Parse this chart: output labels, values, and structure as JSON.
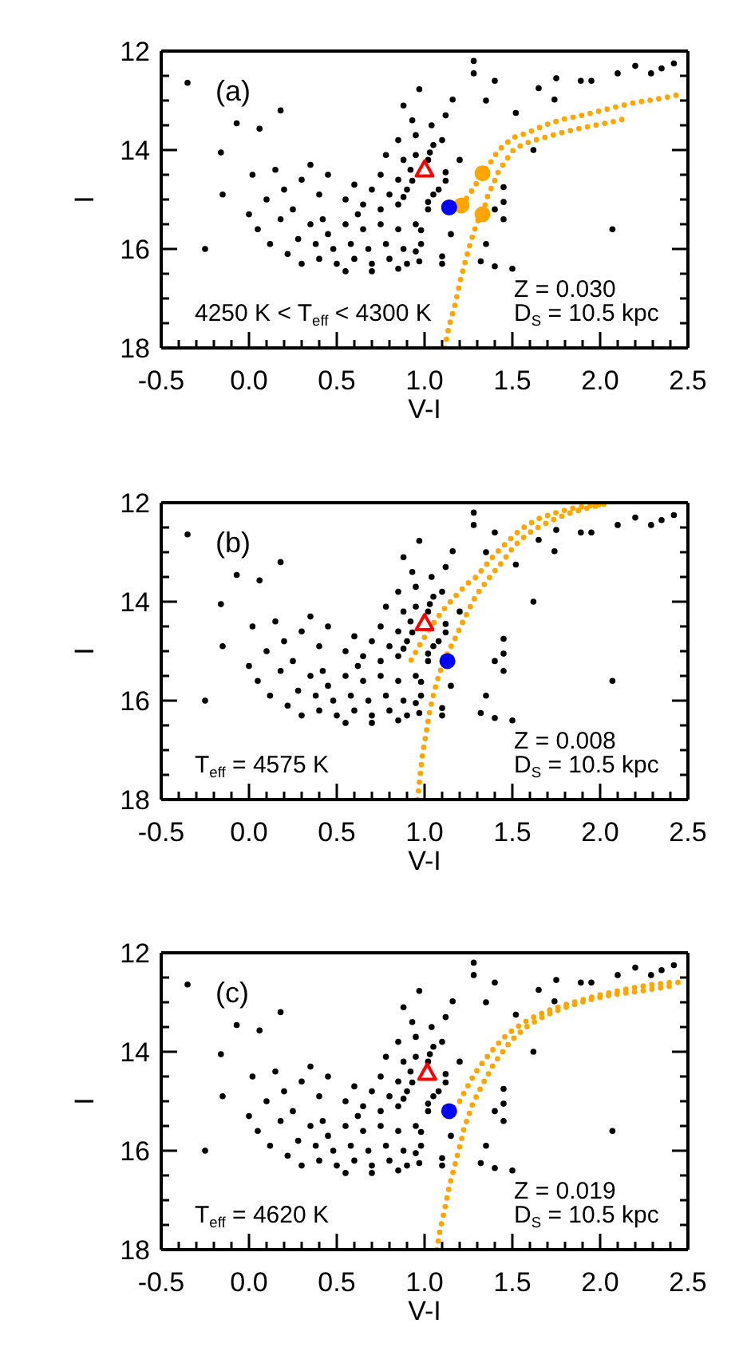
{
  "chart_data": [
    {
      "type": "scatter",
      "xlabel": "V-I",
      "ylabel": "I",
      "xlim": [
        -0.5,
        2.5
      ],
      "ylim": [
        18,
        12
      ],
      "xticks": [
        -0.5,
        {
          "value": -0.4,
          "label": null
        },
        {
          "value": -0.3,
          "label": null
        },
        {
          "value": -0.2,
          "label": null
        },
        {
          "value": -0.1,
          "label": null
        },
        {
          "value": 0,
          "label": "0.0"
        },
        {
          "value": 0.1,
          "label": null
        },
        {
          "value": 0.2,
          "label": null
        },
        {
          "value": 0.3,
          "label": null
        },
        {
          "value": 0.4,
          "label": null
        },
        0.5,
        {
          "value": 0.6,
          "label": null
        },
        {
          "value": 0.7,
          "label": null
        },
        {
          "value": 0.8,
          "label": null
        },
        {
          "value": 0.9,
          "label": null
        },
        {
          "value": 1,
          "label": "1.0"
        },
        {
          "value": 1.1,
          "label": null
        },
        {
          "value": 1.2,
          "label": null
        },
        {
          "value": 1.3,
          "label": null
        },
        {
          "value": 1.4,
          "label": null
        },
        1.5,
        {
          "value": 1.6,
          "label": null
        },
        {
          "value": 1.7,
          "label": null
        },
        {
          "value": 1.8,
          "label": null
        },
        {
          "value": 1.9,
          "label": null
        },
        {
          "value": 2,
          "label": "2.0"
        },
        {
          "value": 2.1,
          "label": null
        },
        {
          "value": 2.2,
          "label": null
        },
        {
          "value": 2.3,
          "label": null
        },
        {
          "value": 2.4,
          "label": null
        },
        2.5
      ],
      "yticks": [
        12,
        {
          "value": 12.5,
          "label": null
        },
        {
          "value": 13,
          "label": null
        },
        {
          "value": 13.5,
          "label": null
        },
        14,
        {
          "value": 14.5,
          "label": null
        },
        {
          "value": 15,
          "label": null
        },
        {
          "value": 15.5,
          "label": null
        },
        16,
        {
          "value": 16.5,
          "label": null
        },
        {
          "value": 17,
          "label": null
        },
        {
          "value": 17.5,
          "label": null
        },
        18
      ],
      "annotations": [
        "(a)",
        "4250 K < T$_{eff}$ < 4300 K",
        "Z = 0.030",
        "D$_{S}$ = 10.5 kpc"
      ],
      "series": [
        {
          "type": "scatter",
          "marker": "circle",
          "color": "#000000",
          "x": [
            -0.35,
            -0.07,
            0.18,
            0.06,
            -0.16,
            0.97,
            1.16,
            1.28,
            1.28,
            1.4,
            1.65,
            1.52,
            1.89,
            1.95,
            2.1,
            2.29,
            2.35,
            1.74,
            0.88,
            1.04,
            1.62,
            2.07,
            1.12,
            0.93,
            1.35,
            2.2,
            1.75,
            2.42,
            -0.15,
            -0.25,
            0.02,
            0.1,
            0.15,
            0.2,
            0.25,
            0.3,
            0.05,
            0.12,
            0.18,
            0.35,
            0.4,
            0.42,
            0.28,
            0.0,
            0.22,
            0.45,
            0.85,
            0.95,
            1.05,
            1.1,
            0.78,
            0.88,
            0.95,
            1.02,
            1.03,
            1.2,
            0.75,
            0.85,
            0.92,
            1.12,
            1.12,
            1.45,
            0.7,
            0.8,
            0.9,
            0.93,
            1.05,
            1.08,
            0.65,
            0.75,
            0.85,
            0.88,
            1.02,
            1.02,
            1.4,
            0.6,
            0.55,
            1.45,
            1.45,
            0.35,
            0.45,
            0.55,
            0.65,
            0.75,
            0.85,
            0.95,
            0.98,
            1.15,
            0.38,
            0.48,
            0.58,
            0.68,
            0.78,
            0.88,
            0.98,
            0.95,
            1.1,
            0.4,
            0.5,
            0.6,
            0.7,
            0.8,
            0.9,
            0.97,
            1.1,
            0.55,
            0.7,
            0.85,
            1.32,
            1.35,
            1.4,
            0.3,
            1.5,
            0.62
          ],
          "values": [
            12.64,
            13.46,
            13.2,
            13.57,
            14.05,
            12.77,
            12.98,
            12.45,
            12.2,
            12.6,
            12.75,
            13.25,
            12.6,
            12.6,
            12.45,
            12.45,
            12.35,
            12.98,
            13.1,
            13.5,
            14.0,
            15.6,
            13.3,
            13.4,
            13.0,
            12.3,
            12.55,
            12.25,
            14.9,
            16.0,
            14.5,
            15.0,
            14.4,
            14.8,
            15.2,
            14.6,
            15.6,
            15.9,
            15.4,
            14.3,
            14.9,
            15.4,
            15.8,
            15.3,
            16.1,
            14.5,
            13.8,
            13.7,
            13.9,
            13.8,
            14.1,
            14.2,
            14.1,
            14.2,
            14.05,
            14.2,
            14.5,
            14.6,
            14.4,
            14.45,
            14.62,
            14.75,
            14.8,
            14.9,
            14.8,
            14.62,
            14.9,
            14.8,
            15.1,
            15.2,
            15.1,
            14.95,
            15.2,
            15.05,
            15.2,
            14.7,
            15.0,
            15.05,
            15.4,
            15.5,
            15.7,
            15.5,
            15.6,
            15.5,
            15.6,
            15.5,
            15.62,
            15.7,
            15.9,
            16.0,
            15.9,
            16.0,
            15.9,
            16.0,
            15.9,
            16.05,
            16.15,
            16.2,
            16.3,
            16.2,
            16.3,
            16.2,
            16.3,
            16.25,
            16.3,
            16.45,
            16.45,
            16.4,
            16.25,
            15.9,
            16.35,
            16.3,
            16.4,
            15.3
          ]
        },
        {
          "type": "line",
          "line_style": "dotted",
          "color": "#ffa500",
          "x": [
            1.115,
            1.14,
            1.17,
            1.21,
            1.26,
            1.3,
            1.33,
            1.36,
            1.39,
            1.42,
            1.47,
            1.51,
            1.57,
            1.64,
            1.72,
            1.8,
            1.9,
            2.0,
            2.08,
            2.15
          ],
          "values": [
            18.0,
            17.55,
            17.18,
            16.54,
            15.89,
            15.45,
            15.3,
            14.92,
            14.7,
            14.44,
            14.17,
            13.98,
            13.87,
            13.79,
            13.71,
            13.63,
            13.55,
            13.48,
            13.42,
            13.36
          ]
        },
        {
          "type": "line",
          "line_style": "dotted",
          "color": "#ffa500",
          "x": [
            1.21,
            1.27,
            1.33,
            1.38,
            1.42,
            1.47,
            1.51,
            1.58,
            1.65,
            1.72,
            1.8,
            1.92,
            2.01,
            2.1,
            2.2,
            2.29,
            2.37,
            2.45
          ],
          "values": [
            15.12,
            14.82,
            14.47,
            14.23,
            14.01,
            13.85,
            13.74,
            13.66,
            13.55,
            13.45,
            13.37,
            13.28,
            13.2,
            13.12,
            13.04,
            12.99,
            12.94,
            12.88
          ]
        },
        {
          "type": "scatter",
          "marker": "circle",
          "color": "#ffa500",
          "x": [
            1.33,
            1.33,
            1.21
          ],
          "values": [
            14.47,
            15.3,
            15.12
          ]
        },
        {
          "type": "scatter",
          "marker": "triangle",
          "color": "#ff0000",
          "x": [
            1.0
          ],
          "values": [
            14.39
          ]
        },
        {
          "type": "scatter",
          "marker": "circle",
          "color": "#0000ff",
          "x": [
            1.14
          ],
          "values": [
            15.16
          ]
        }
      ]
    },
    {
      "type": "scatter",
      "xlabel": "V-I",
      "ylabel": "I",
      "xlim": [
        -0.5,
        2.5
      ],
      "ylim": [
        18,
        12
      ],
      "xticks": [
        -0.5,
        {
          "value": -0.4,
          "label": null
        },
        {
          "value": -0.3,
          "label": null
        },
        {
          "value": -0.2,
          "label": null
        },
        {
          "value": -0.1,
          "label": null
        },
        {
          "value": 0,
          "label": "0.0"
        },
        {
          "value": 0.1,
          "label": null
        },
        {
          "value": 0.2,
          "label": null
        },
        {
          "value": 0.3,
          "label": null
        },
        {
          "value": 0.4,
          "label": null
        },
        0.5,
        {
          "value": 0.6,
          "label": null
        },
        {
          "value": 0.7,
          "label": null
        },
        {
          "value": 0.8,
          "label": null
        },
        {
          "value": 0.9,
          "label": null
        },
        {
          "value": 1,
          "label": "1.0"
        },
        {
          "value": 1.1,
          "label": null
        },
        {
          "value": 1.2,
          "label": null
        },
        {
          "value": 1.3,
          "label": null
        },
        {
          "value": 1.4,
          "label": null
        },
        1.5,
        {
          "value": 1.6,
          "label": null
        },
        {
          "value": 1.7,
          "label": null
        },
        {
          "value": 1.8,
          "label": null
        },
        {
          "value": 1.9,
          "label": null
        },
        {
          "value": 2,
          "label": "2.0"
        },
        {
          "value": 2.1,
          "label": null
        },
        {
          "value": 2.2,
          "label": null
        },
        {
          "value": 2.3,
          "label": null
        },
        {
          "value": 2.4,
          "label": null
        },
        2.5
      ],
      "yticks": [
        12,
        {
          "value": 12.5,
          "label": null
        },
        {
          "value": 13,
          "label": null
        },
        {
          "value": 13.5,
          "label": null
        },
        14,
        {
          "value": 14.5,
          "label": null
        },
        {
          "value": 15,
          "label": null
        },
        {
          "value": 15.5,
          "label": null
        },
        16,
        {
          "value": 16.5,
          "label": null
        },
        {
          "value": 17,
          "label": null
        },
        {
          "value": 17.5,
          "label": null
        },
        18
      ],
      "annotations": [
        "(b)",
        "T$_{eff}$ = 4575 K",
        "Z = 0.008",
        "D$_{S}$ = 10.5 kpc"
      ],
      "series": [
        {
          "type": "scatter",
          "marker": "circle",
          "color": "#000000",
          "x": [
            -0.35,
            -0.07,
            0.18,
            0.06,
            -0.16,
            0.97,
            1.16,
            1.28,
            1.28,
            1.4,
            1.65,
            1.52,
            1.89,
            1.95,
            2.1,
            2.29,
            2.35,
            1.74,
            0.88,
            1.04,
            1.62,
            2.07,
            1.12,
            0.93,
            1.35,
            2.2,
            1.75,
            2.42,
            -0.15,
            -0.25,
            0.02,
            0.1,
            0.15,
            0.2,
            0.25,
            0.3,
            0.05,
            0.12,
            0.18,
            0.35,
            0.4,
            0.42,
            0.28,
            0.0,
            0.22,
            0.45,
            0.85,
            0.95,
            1.05,
            1.1,
            0.78,
            0.88,
            0.95,
            1.02,
            1.03,
            1.2,
            0.75,
            0.85,
            0.92,
            1.12,
            1.12,
            1.45,
            0.7,
            0.8,
            0.9,
            0.93,
            1.05,
            1.08,
            0.65,
            0.75,
            0.85,
            0.88,
            1.02,
            1.02,
            1.4,
            0.6,
            0.55,
            1.45,
            1.45,
            0.35,
            0.45,
            0.55,
            0.65,
            0.75,
            0.85,
            0.95,
            0.98,
            1.15,
            0.38,
            0.48,
            0.58,
            0.68,
            0.78,
            0.88,
            0.98,
            0.95,
            1.1,
            0.4,
            0.5,
            0.6,
            0.7,
            0.8,
            0.9,
            0.97,
            1.1,
            0.55,
            0.7,
            0.85,
            1.32,
            1.35,
            1.4,
            0.3,
            1.5,
            0.62
          ],
          "values": [
            12.64,
            13.46,
            13.2,
            13.57,
            14.05,
            12.77,
            12.98,
            12.45,
            12.2,
            12.6,
            12.75,
            13.25,
            12.6,
            12.6,
            12.45,
            12.45,
            12.35,
            12.98,
            13.1,
            13.5,
            14.0,
            15.6,
            13.3,
            13.4,
            13.0,
            12.3,
            12.55,
            12.25,
            14.9,
            16.0,
            14.5,
            15.0,
            14.4,
            14.8,
            15.2,
            14.6,
            15.6,
            15.9,
            15.4,
            14.3,
            14.9,
            15.4,
            15.8,
            15.3,
            16.1,
            14.5,
            13.8,
            13.7,
            13.9,
            13.8,
            14.1,
            14.2,
            14.1,
            14.2,
            14.05,
            14.2,
            14.5,
            14.6,
            14.4,
            14.45,
            14.62,
            14.75,
            14.8,
            14.9,
            14.8,
            14.62,
            14.9,
            14.8,
            15.1,
            15.2,
            15.1,
            14.95,
            15.2,
            15.05,
            15.2,
            14.7,
            15.0,
            15.05,
            15.4,
            15.5,
            15.7,
            15.5,
            15.6,
            15.5,
            15.6,
            15.5,
            15.62,
            15.7,
            15.9,
            16.0,
            15.9,
            16.0,
            15.9,
            16.0,
            15.9,
            16.05,
            16.15,
            16.2,
            16.3,
            16.2,
            16.3,
            16.2,
            16.3,
            16.25,
            16.3,
            16.45,
            16.45,
            16.4,
            16.25,
            15.9,
            16.35,
            16.3,
            16.4,
            15.3
          ]
        },
        {
          "type": "line",
          "line_style": "dotted",
          "color": "#ffa500",
          "x": [
            0.96,
            0.975,
            0.99,
            1.01,
            1.03,
            1.055,
            1.08,
            1.11,
            1.15,
            1.18,
            1.21,
            1.24,
            1.27,
            1.3,
            1.34,
            1.38,
            1.42,
            1.45,
            1.49,
            1.54,
            1.6,
            1.67,
            1.76,
            1.85,
            1.94,
            2.03
          ],
          "values": [
            18.0,
            17.5,
            17.05,
            16.63,
            16.2,
            15.82,
            15.5,
            15.2,
            14.91,
            14.7,
            14.46,
            14.25,
            14.03,
            13.84,
            13.65,
            13.46,
            13.3,
            13.16,
            12.97,
            12.77,
            12.6,
            12.45,
            12.3,
            12.18,
            12.1,
            12.02
          ]
        },
        {
          "type": "line",
          "line_style": "dotted",
          "color": "#ffa500",
          "x": [
            0.924,
            0.97,
            1.018,
            1.067,
            1.127,
            1.188,
            1.25,
            1.294,
            1.34,
            1.394,
            1.455,
            1.515,
            1.576,
            1.65,
            1.74,
            1.83,
            1.92,
            2.03
          ],
          "values": [
            15.18,
            14.89,
            14.61,
            14.35,
            14.08,
            13.84,
            13.62,
            13.5,
            13.3,
            13.07,
            12.85,
            12.64,
            12.47,
            12.32,
            12.21,
            12.12,
            12.07,
            12.02
          ]
        },
        {
          "type": "scatter",
          "marker": "triangle",
          "color": "#ff0000",
          "x": [
            1.0
          ],
          "values": [
            14.43
          ]
        },
        {
          "type": "scatter",
          "marker": "circle",
          "color": "#0000ff",
          "x": [
            1.13
          ],
          "values": [
            15.2
          ]
        }
      ]
    },
    {
      "type": "scatter",
      "xlabel": "V-I",
      "ylabel": "I",
      "xlim": [
        -0.5,
        2.5
      ],
      "ylim": [
        18,
        12
      ],
      "xticks": [
        -0.5,
        {
          "value": -0.4,
          "label": null
        },
        {
          "value": -0.3,
          "label": null
        },
        {
          "value": -0.2,
          "label": null
        },
        {
          "value": -0.1,
          "label": null
        },
        {
          "value": 0,
          "label": "0.0"
        },
        {
          "value": 0.1,
          "label": null
        },
        {
          "value": 0.2,
          "label": null
        },
        {
          "value": 0.3,
          "label": null
        },
        {
          "value": 0.4,
          "label": null
        },
        0.5,
        {
          "value": 0.6,
          "label": null
        },
        {
          "value": 0.7,
          "label": null
        },
        {
          "value": 0.8,
          "label": null
        },
        {
          "value": 0.9,
          "label": null
        },
        {
          "value": 1,
          "label": "1.0"
        },
        {
          "value": 1.1,
          "label": null
        },
        {
          "value": 1.2,
          "label": null
        },
        {
          "value": 1.3,
          "label": null
        },
        {
          "value": 1.4,
          "label": null
        },
        1.5,
        {
          "value": 1.6,
          "label": null
        },
        {
          "value": 1.7,
          "label": null
        },
        {
          "value": 1.8,
          "label": null
        },
        {
          "value": 1.9,
          "label": null
        },
        {
          "value": 2,
          "label": "2.0"
        },
        {
          "value": 2.1,
          "label": null
        },
        {
          "value": 2.2,
          "label": null
        },
        {
          "value": 2.3,
          "label": null
        },
        {
          "value": 2.4,
          "label": null
        },
        2.5
      ],
      "yticks": [
        12,
        {
          "value": 12.5,
          "label": null
        },
        {
          "value": 13,
          "label": null
        },
        {
          "value": 13.5,
          "label": null
        },
        14,
        {
          "value": 14.5,
          "label": null
        },
        {
          "value": 15,
          "label": null
        },
        {
          "value": 15.5,
          "label": null
        },
        16,
        {
          "value": 16.5,
          "label": null
        },
        {
          "value": 17,
          "label": null
        },
        {
          "value": 17.5,
          "label": null
        },
        18
      ],
      "annotations": [
        "(c)",
        "T$_{eff}$ = 4620 K",
        "Z = 0.019",
        "D$_{S}$ = 10.5 kpc"
      ],
      "series": [
        {
          "type": "scatter",
          "marker": "circle",
          "color": "#000000",
          "x": [
            -0.35,
            -0.07,
            0.18,
            0.06,
            -0.16,
            0.97,
            1.16,
            1.28,
            1.28,
            1.4,
            1.65,
            1.52,
            1.89,
            1.95,
            2.1,
            2.29,
            2.35,
            1.74,
            0.88,
            1.04,
            1.62,
            2.07,
            1.12,
            0.93,
            1.35,
            2.2,
            1.75,
            2.42,
            -0.15,
            -0.25,
            0.02,
            0.1,
            0.15,
            0.2,
            0.25,
            0.3,
            0.05,
            0.12,
            0.18,
            0.35,
            0.4,
            0.42,
            0.28,
            0.0,
            0.22,
            0.45,
            0.85,
            0.95,
            1.05,
            1.1,
            0.78,
            0.88,
            0.95,
            1.02,
            1.03,
            1.2,
            0.75,
            0.85,
            0.92,
            1.12,
            1.12,
            1.45,
            0.7,
            0.8,
            0.9,
            0.93,
            1.05,
            1.08,
            0.65,
            0.75,
            0.85,
            0.88,
            1.02,
            1.02,
            1.4,
            0.6,
            0.55,
            1.45,
            1.45,
            0.35,
            0.45,
            0.55,
            0.65,
            0.75,
            0.85,
            0.95,
            0.98,
            1.15,
            0.38,
            0.48,
            0.58,
            0.68,
            0.78,
            0.88,
            0.98,
            0.95,
            1.1,
            0.4,
            0.5,
            0.6,
            0.7,
            0.8,
            0.9,
            0.97,
            1.1,
            0.55,
            0.7,
            0.85,
            1.32,
            1.35,
            1.4,
            0.3,
            1.5,
            0.62
          ],
          "values": [
            12.64,
            13.46,
            13.2,
            13.57,
            14.05,
            12.77,
            12.98,
            12.45,
            12.2,
            12.6,
            12.75,
            13.25,
            12.6,
            12.6,
            12.45,
            12.45,
            12.35,
            12.98,
            13.1,
            13.5,
            14.0,
            15.6,
            13.3,
            13.4,
            13.0,
            12.3,
            12.55,
            12.25,
            14.9,
            16.0,
            14.5,
            15.0,
            14.4,
            14.8,
            15.2,
            14.6,
            15.6,
            15.9,
            15.4,
            14.3,
            14.9,
            15.4,
            15.8,
            15.3,
            16.1,
            14.5,
            13.8,
            13.7,
            13.9,
            13.8,
            14.1,
            14.2,
            14.1,
            14.2,
            14.05,
            14.2,
            14.5,
            14.6,
            14.4,
            14.45,
            14.62,
            14.75,
            14.8,
            14.9,
            14.8,
            14.62,
            14.9,
            14.8,
            15.1,
            15.2,
            15.1,
            14.95,
            15.2,
            15.05,
            15.2,
            14.7,
            15.0,
            15.05,
            15.4,
            15.5,
            15.7,
            15.5,
            15.6,
            15.5,
            15.6,
            15.5,
            15.62,
            15.7,
            15.9,
            16.0,
            15.9,
            16.0,
            15.9,
            16.0,
            15.9,
            16.05,
            16.15,
            16.2,
            16.3,
            16.2,
            16.3,
            16.2,
            16.3,
            16.25,
            16.3,
            16.45,
            16.45,
            16.4,
            16.25,
            15.9,
            16.35,
            16.3,
            16.4,
            15.3
          ]
        },
        {
          "type": "line",
          "line_style": "dotted",
          "color": "#ffa500",
          "x": [
            1.07,
            1.085,
            1.105,
            1.124,
            1.14,
            1.167,
            1.19,
            1.21,
            1.227,
            1.25,
            1.27,
            1.3,
            1.33,
            1.36,
            1.39,
            1.43,
            1.47,
            1.52,
            1.58,
            1.65,
            1.73,
            1.82,
            1.92,
            2.02,
            2.12,
            2.22,
            2.32,
            2.42
          ],
          "values": [
            18.0,
            17.66,
            17.34,
            17.02,
            16.72,
            16.37,
            16.05,
            15.78,
            15.52,
            15.3,
            15.09,
            14.87,
            14.66,
            14.47,
            14.27,
            14.07,
            13.88,
            13.68,
            13.5,
            13.34,
            13.2,
            13.08,
            12.97,
            12.88,
            12.82,
            12.78,
            12.72,
            12.66
          ]
        },
        {
          "type": "line",
          "line_style": "dotted",
          "color": "#ffa500",
          "x": [
            1.2,
            1.23,
            1.26,
            1.29,
            1.33,
            1.37,
            1.41,
            1.45,
            1.5,
            1.56,
            1.63,
            1.71,
            1.8,
            1.9,
            2.0,
            2.1,
            2.2,
            2.3,
            2.4,
            2.47
          ],
          "values": [
            15.0,
            14.8,
            14.6,
            14.42,
            14.22,
            14.04,
            13.87,
            13.72,
            13.57,
            13.42,
            13.28,
            13.16,
            13.05,
            12.95,
            12.85,
            12.77,
            12.7,
            12.64,
            12.6,
            12.6
          ]
        },
        {
          "type": "scatter",
          "marker": "triangle",
          "color": "#ff0000",
          "x": [
            1.015
          ],
          "values": [
            14.42
          ]
        },
        {
          "type": "scatter",
          "marker": "circle",
          "color": "#0000ff",
          "x": [
            1.14
          ],
          "values": [
            15.2
          ]
        }
      ]
    }
  ]
}
